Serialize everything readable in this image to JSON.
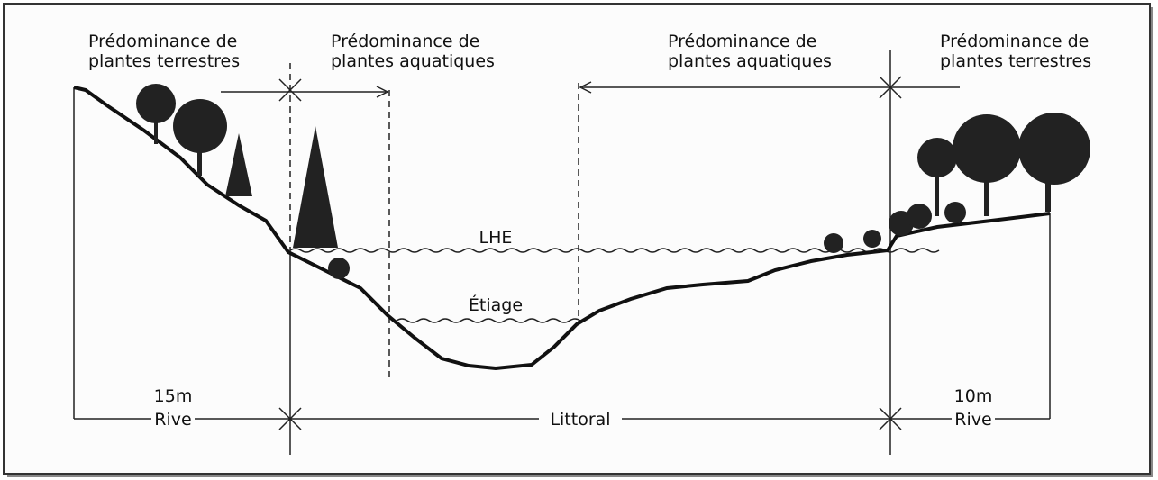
{
  "zones": [
    {
      "lines": [
        "Prédominance de",
        "plantes terrestres"
      ]
    },
    {
      "lines": [
        "Prédominance de",
        "plantes  aquatiques"
      ]
    },
    {
      "lines": [
        "Prédominance de",
        "plantes aquatiques"
      ]
    },
    {
      "lines": [
        "Prédominance de",
        "plantes terrestres"
      ]
    }
  ],
  "water_levels": {
    "high": "LHE",
    "low": "Étiage"
  },
  "bottom": {
    "left_width": "15m",
    "left": "Rive",
    "middle": "Littoral",
    "right_width": "10m",
    "right": "Rive"
  }
}
